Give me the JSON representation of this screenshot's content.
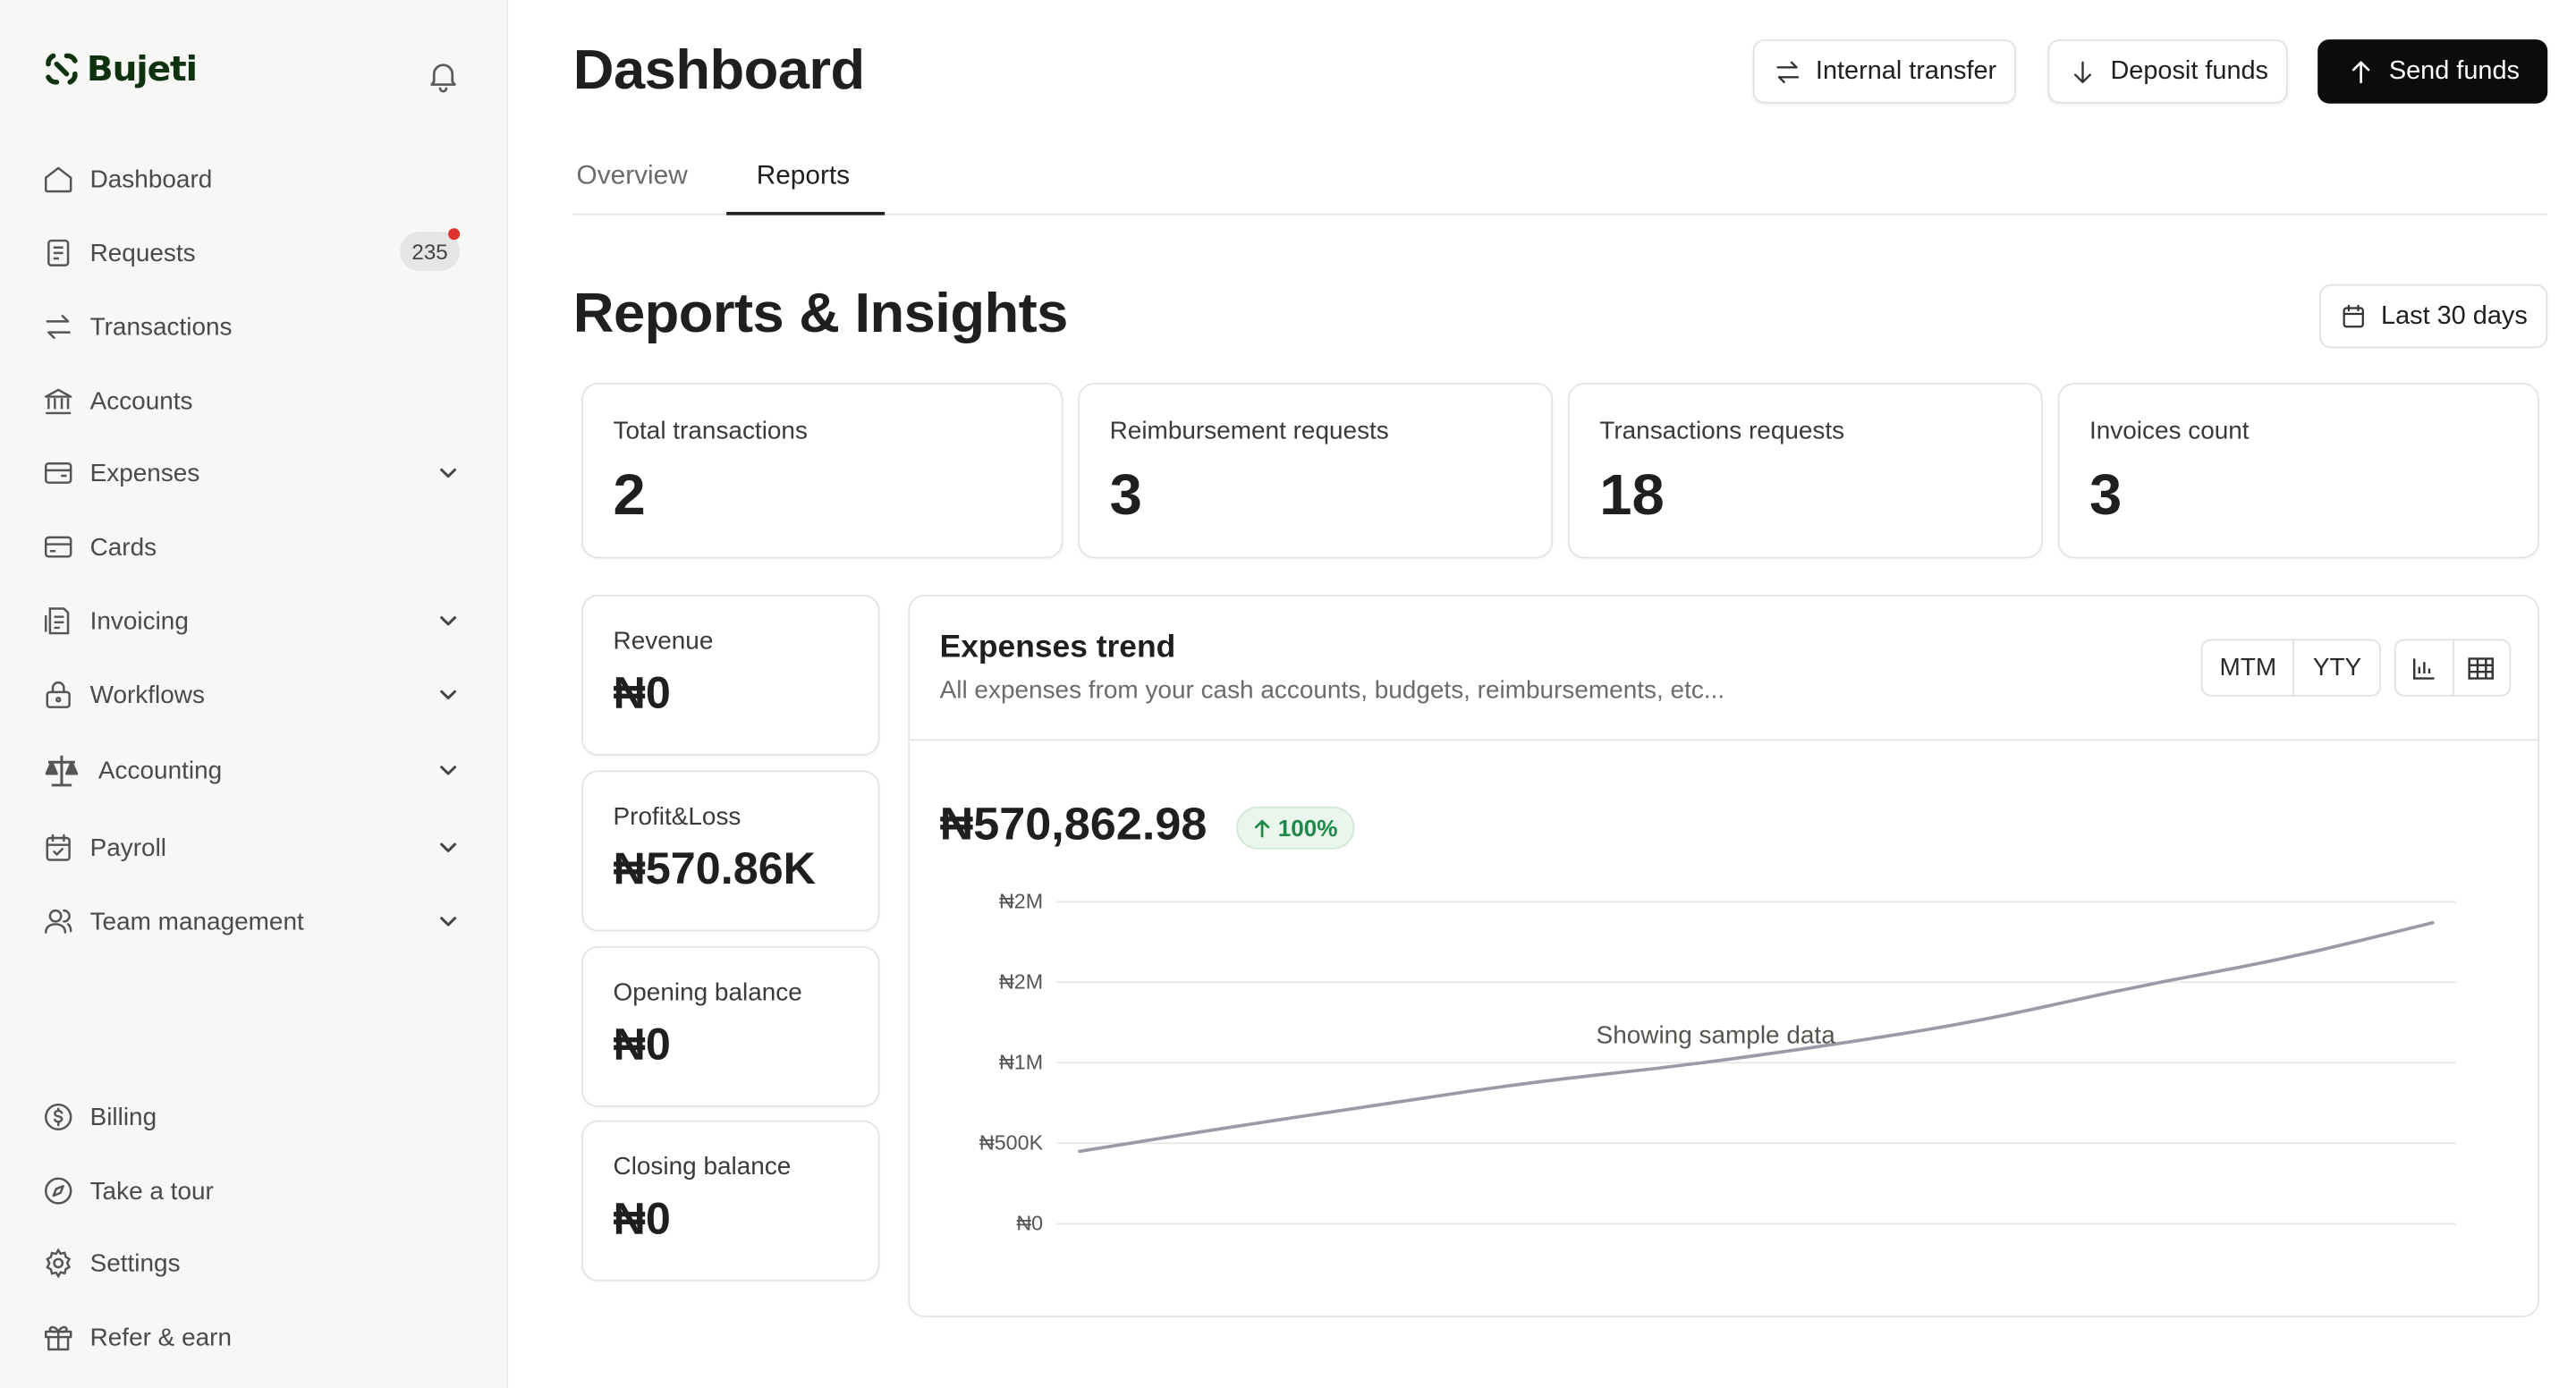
{
  "app": {
    "name": "Bujeti"
  },
  "sidebar": {
    "items": [
      {
        "label": "Dashboard",
        "icon": "home-icon"
      },
      {
        "label": "Requests",
        "icon": "requests-icon",
        "badge": "235"
      },
      {
        "label": "Transactions",
        "icon": "transfer-arrows-icon"
      },
      {
        "label": "Accounts",
        "icon": "bank-icon"
      },
      {
        "label": "Expenses",
        "icon": "wallet-icon",
        "expandable": true
      },
      {
        "label": "Cards",
        "icon": "card-icon"
      },
      {
        "label": "Invoicing",
        "icon": "invoice-icon",
        "expandable": true
      },
      {
        "label": "Workflows",
        "icon": "lock-icon",
        "expandable": true
      },
      {
        "label": "Accounting",
        "icon": "scale-icon",
        "expandable": true
      },
      {
        "label": "Payroll",
        "icon": "calendar-check-icon",
        "expandable": true
      },
      {
        "label": "Team management",
        "icon": "users-icon",
        "expandable": true
      }
    ],
    "bottom_items": [
      {
        "label": "Billing",
        "icon": "dollar-circle-icon"
      },
      {
        "label": "Take a tour",
        "icon": "compass-icon"
      },
      {
        "label": "Settings",
        "icon": "gear-icon"
      },
      {
        "label": "Refer & earn",
        "icon": "gift-icon"
      }
    ]
  },
  "header": {
    "title": "Dashboard",
    "internal_transfer": "Internal transfer",
    "deposit_funds": "Deposit funds",
    "send_funds": "Send funds"
  },
  "tabs": [
    {
      "label": "Overview",
      "active": false
    },
    {
      "label": "Reports",
      "active": true
    }
  ],
  "reports": {
    "title": "Reports & Insights",
    "date_range": "Last 30 days",
    "stats": [
      {
        "label": "Total transactions",
        "value": "2"
      },
      {
        "label": "Reimbursement requests",
        "value": "3"
      },
      {
        "label": "Transactions requests",
        "value": "18"
      },
      {
        "label": "Invoices count",
        "value": "3"
      }
    ],
    "mini": [
      {
        "label": "Revenue",
        "value": "₦0"
      },
      {
        "label": "Profit&Loss",
        "value": "₦570.86K"
      },
      {
        "label": "Opening balance",
        "value": "₦0"
      },
      {
        "label": "Closing balance",
        "value": "₦0"
      }
    ]
  },
  "trend": {
    "title": "Expenses trend",
    "subtitle": "All expenses from your cash accounts, budgets, reimbursements, etc...",
    "toggle": [
      "MTM",
      "YTY"
    ],
    "amount": "₦570,862.98",
    "change": "100%",
    "note": "Showing sample data",
    "line_color": "#9a9aa8",
    "accent_green": "#1f8a47"
  },
  "chart_data": {
    "type": "line",
    "y_ticks": [
      "₦2M",
      "₦2M",
      "₦1M",
      "₦500K",
      "₦0"
    ],
    "y_tick_values": [
      2000000,
      1500000,
      1000000,
      500000,
      0
    ],
    "ylim": [
      0,
      2000000
    ],
    "grid": true,
    "series": [
      {
        "values": [
          450000,
          600000,
          740000,
          880000,
          980000,
          1110000,
          1260000,
          1470000,
          1640000,
          1870000
        ]
      }
    ]
  }
}
